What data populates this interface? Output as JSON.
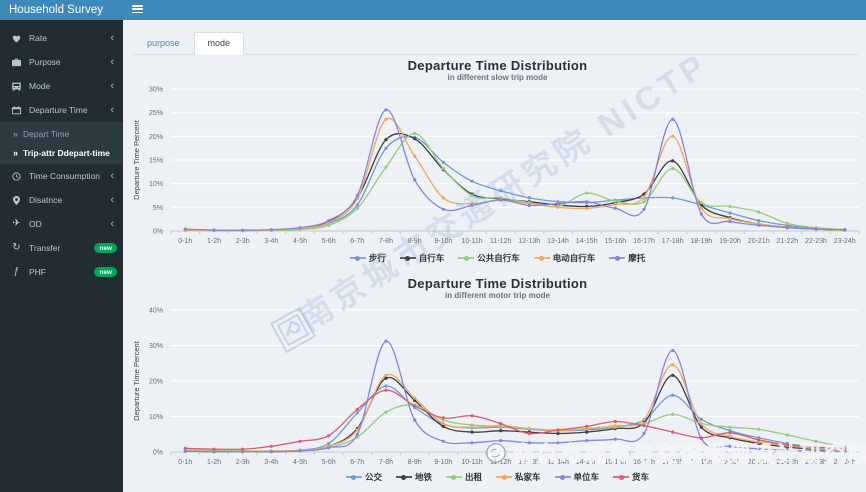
{
  "app": {
    "title": "Household Survey"
  },
  "sidebar": {
    "items": [
      {
        "label": "Rate",
        "icon": "heart-icon",
        "chevron": true
      },
      {
        "label": "Purpose",
        "icon": "briefcase-icon",
        "chevron": true
      },
      {
        "label": "Mode",
        "icon": "bus-icon",
        "chevron": true
      },
      {
        "label": "Departure Time",
        "icon": "calendar-icon",
        "chevron": true,
        "children": [
          {
            "label": "Depart Time",
            "active": false
          },
          {
            "label": "Trip-attr Ddepart-time",
            "active": true
          }
        ]
      },
      {
        "label": "Time Consumption",
        "icon": "clock-icon",
        "chevron": true
      },
      {
        "label": "Disatnce",
        "icon": "map-marker-icon",
        "chevron": true
      },
      {
        "label": "OD",
        "icon": "plane-icon",
        "chevron": true
      },
      {
        "label": "Transfer",
        "icon": "refresh-icon",
        "badge": "new"
      },
      {
        "label": "PHF",
        "icon": "function-icon",
        "badge": "new"
      }
    ],
    "badge_color": "#00a65a"
  },
  "tabs": [
    {
      "label": "purpose",
      "active": false
    },
    {
      "label": "mode",
      "active": true
    }
  ],
  "watermarks": {
    "diagonal": "南京城市交通研究院 NICTP",
    "bottom": "南京市城市与交通规划设计研究院"
  },
  "chart_data": [
    {
      "type": "line",
      "title": "Departure Time Distribution",
      "subtitle": "in different slow trip mode",
      "ylabel": "Departure Time Percent",
      "ylim": [
        0,
        30
      ],
      "ytick": 5,
      "grid": true,
      "legend_position": "bottom",
      "smooth": true,
      "categories": [
        "0-1h",
        "1-2h",
        "2-3h",
        "3-4h",
        "4-5h",
        "5-6h",
        "6-7h",
        "7-8h",
        "8-9h",
        "9-10h",
        "10-11h",
        "11-12h",
        "12-13h",
        "13-14h",
        "14-15h",
        "15-16h",
        "16-17h",
        "17-18h",
        "18-19h",
        "19-20h",
        "20-21h",
        "21-22h",
        "22-23h",
        "23-24h"
      ],
      "series": [
        {
          "name": "步行",
          "color": "#6e9bd8",
          "values": [
            0.3,
            0.2,
            0.1,
            0.2,
            0.5,
            1.6,
            5.5,
            17.5,
            19.8,
            14.5,
            10.5,
            8.5,
            7.0,
            6.2,
            6.0,
            6.5,
            7.0,
            7.0,
            5.5,
            3.8,
            2.2,
            1.2,
            0.6,
            0.3
          ]
        },
        {
          "name": "自行车",
          "color": "#3d3d42",
          "values": [
            0.2,
            0.1,
            0.1,
            0.2,
            0.5,
            2.0,
            7.0,
            19.3,
            19.5,
            13.0,
            7.8,
            6.8,
            6.2,
            5.5,
            5.2,
            6.0,
            7.8,
            14.8,
            5.5,
            2.8,
            1.5,
            0.8,
            0.4,
            0.2
          ]
        },
        {
          "name": "公共自行车",
          "color": "#93ce7c",
          "values": [
            0.2,
            0.1,
            0.1,
            0.1,
            0.3,
            1.2,
            4.8,
            13.5,
            20.6,
            13.2,
            7.5,
            7.0,
            6.0,
            5.2,
            8.0,
            6.3,
            6.2,
            13.2,
            6.0,
            5.2,
            4.0,
            1.6,
            0.7,
            0.3
          ]
        },
        {
          "name": "电动自行车",
          "color": "#f2a75f",
          "values": [
            0.2,
            0.1,
            0.1,
            0.2,
            0.5,
            1.8,
            6.8,
            23.6,
            15.8,
            7.0,
            5.8,
            6.5,
            5.8,
            5.0,
            4.8,
            5.6,
            7.2,
            20.0,
            4.8,
            2.6,
            1.5,
            0.8,
            0.4,
            0.2
          ]
        },
        {
          "name": "摩托",
          "color": "#8585e0",
          "values": [
            0.4,
            0.2,
            0.2,
            0.3,
            0.7,
            2.2,
            7.5,
            25.6,
            10.8,
            4.6,
            5.4,
            6.6,
            5.4,
            5.8,
            6.2,
            4.8,
            4.6,
            23.6,
            3.6,
            2.0,
            1.2,
            0.7,
            0.4,
            0.3
          ]
        }
      ]
    },
    {
      "type": "line",
      "title": "Departure Time Distribution",
      "subtitle": "in different motor trip mode",
      "ylabel": "Departure Time Percent",
      "ylim": [
        0,
        40
      ],
      "ytick": 10,
      "grid": true,
      "legend_position": "bottom",
      "smooth": true,
      "categories": [
        "0-1h",
        "1-2h",
        "2-3h",
        "3-4h",
        "4-5h",
        "5-6h",
        "6-7h",
        "7-8h",
        "8-9h",
        "9-10h",
        "10-11h",
        "11-12h",
        "12-13h",
        "13-14h",
        "14-15h",
        "15-16h",
        "16-17h",
        "17-18h",
        "18-19h",
        "19-20h",
        "20-21h",
        "21-22h",
        "22-23h",
        "23-24h"
      ],
      "series": [
        {
          "name": "公交",
          "color": "#6e9bd8",
          "values": [
            0.3,
            0.2,
            0.1,
            0.2,
            0.5,
            2.4,
            11.0,
            18.6,
            12.5,
            7.8,
            6.8,
            7.0,
            6.4,
            6.0,
            6.2,
            7.0,
            9.0,
            16.0,
            9.2,
            6.0,
            4.0,
            2.4,
            1.2,
            0.5
          ]
        },
        {
          "name": "地铁",
          "color": "#3d3d42",
          "values": [
            0.2,
            0.1,
            0.1,
            0.1,
            0.4,
            1.6,
            6.6,
            20.8,
            14.5,
            7.2,
            5.6,
            6.0,
            5.6,
            5.2,
            5.6,
            6.6,
            8.2,
            21.6,
            7.0,
            4.0,
            2.4,
            1.4,
            0.7,
            0.3
          ]
        },
        {
          "name": "出租",
          "color": "#93ce7c",
          "values": [
            0.6,
            0.4,
            0.3,
            0.3,
            0.4,
            1.2,
            4.2,
            11.2,
            13.2,
            9.0,
            7.6,
            7.2,
            6.6,
            6.2,
            6.6,
            7.0,
            8.0,
            10.6,
            8.0,
            7.0,
            6.4,
            4.8,
            3.0,
            1.4
          ]
        },
        {
          "name": "私家车",
          "color": "#f2a75f",
          "values": [
            0.3,
            0.2,
            0.1,
            0.2,
            0.5,
            1.6,
            6.2,
            21.6,
            15.2,
            8.0,
            7.0,
            7.4,
            6.6,
            6.0,
            6.6,
            7.4,
            9.2,
            24.6,
            8.0,
            4.4,
            2.8,
            1.8,
            0.9,
            0.4
          ]
        },
        {
          "name": "单位车",
          "color": "#8585e0",
          "values": [
            0.2,
            0.1,
            0.1,
            0.1,
            0.3,
            1.2,
            5.0,
            31.2,
            9.0,
            3.0,
            2.6,
            3.2,
            2.6,
            2.6,
            3.2,
            3.6,
            5.2,
            28.6,
            3.8,
            1.6,
            0.9,
            0.5,
            0.3,
            0.2
          ]
        },
        {
          "name": "货车",
          "color": "#de5b72",
          "values": [
            1.0,
            0.8,
            0.8,
            1.6,
            3.0,
            4.6,
            12.0,
            17.4,
            13.0,
            9.6,
            10.2,
            8.0,
            5.2,
            6.2,
            7.2,
            8.6,
            7.4,
            5.6,
            4.0,
            5.4,
            3.4,
            2.0,
            1.4,
            1.0
          ]
        }
      ]
    }
  ]
}
